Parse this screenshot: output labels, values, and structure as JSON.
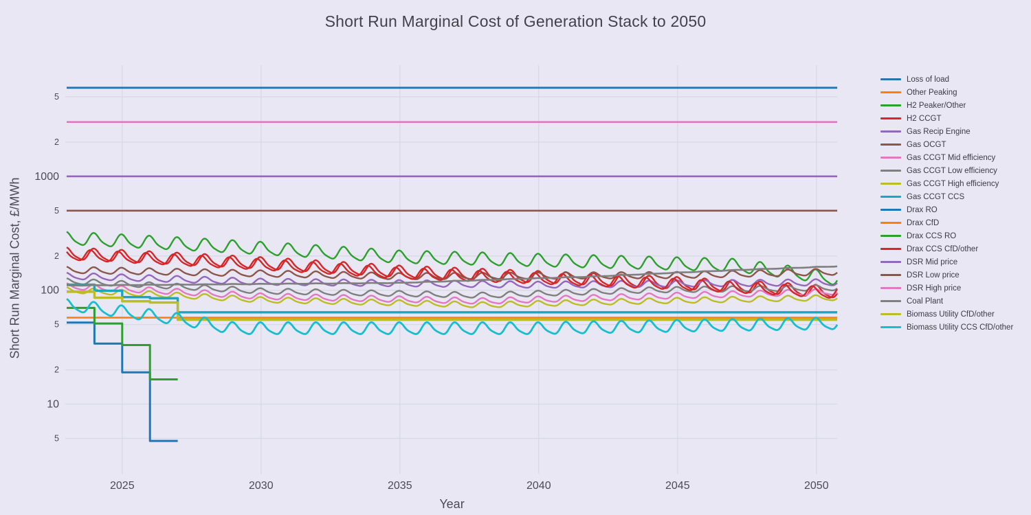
{
  "chart_data": {
    "type": "line",
    "title": "Short Run Marginal Cost of Generation Stack to 2050",
    "xlabel": "Year",
    "ylabel": "Short Run Marginal Cost, £/MWh",
    "x_range": [
      2023,
      2050.75
    ],
    "y_log_range": [
      0.388,
      3.976
    ],
    "x_ticks": [
      2025,
      2030,
      2035,
      2040,
      2045,
      2050
    ],
    "y_ticks": [
      {
        "value": 5000,
        "label": "5",
        "minor": true
      },
      {
        "value": 2000,
        "label": "2",
        "minor": true
      },
      {
        "value": 1000,
        "label": "1000",
        "minor": false
      },
      {
        "value": 500,
        "label": "5",
        "minor": true
      },
      {
        "value": 200,
        "label": "2",
        "minor": true
      },
      {
        "value": 100,
        "label": "100",
        "minor": false
      },
      {
        "value": 50,
        "label": "5",
        "minor": true
      },
      {
        "value": 20,
        "label": "2",
        "minor": true
      },
      {
        "value": 10,
        "label": "10",
        "minor": false
      },
      {
        "value": 5,
        "label": "5",
        "minor": true
      }
    ],
    "grid": true,
    "legend_position": "right",
    "series": [
      {
        "name": "Loss of load",
        "color": "#1f77b4",
        "kind": "flat",
        "value": 6000,
        "width": 2.8
      },
      {
        "name": "Other Peaking",
        "color": "#ff7f0e",
        "kind": "flat",
        "value": 57.5,
        "width": 2.4
      },
      {
        "name": "H2 Peaker/Other",
        "color": "#2ca02c",
        "kind": "osc",
        "trend": [
          [
            2023,
            285
          ],
          [
            2035,
            195
          ],
          [
            2043,
            175
          ],
          [
            2047,
            165
          ],
          [
            2051,
            122
          ]
        ],
        "amp": 0.14,
        "phase": 0,
        "width": 2.4
      },
      {
        "name": "H2 CCGT",
        "color": "#d62728",
        "kind": "osc",
        "trend": [
          [
            2023,
            210
          ],
          [
            2035,
            145
          ],
          [
            2045,
            115
          ],
          [
            2051,
            95
          ]
        ],
        "amp": 0.13,
        "phase": 0,
        "width": 2.4
      },
      {
        "name": "Gas Recip Engine",
        "color": "#9467bd",
        "kind": "osc",
        "trend": [
          [
            2023,
            133
          ],
          [
            2030,
            118
          ],
          [
            2040,
            111
          ],
          [
            2051,
            117
          ]
        ],
        "amp": 0.07,
        "phase": 0,
        "width": 2.4
      },
      {
        "name": "Gas OCGT",
        "color": "#8c564b",
        "kind": "osc",
        "trend": [
          [
            2023,
            150
          ],
          [
            2035,
            132
          ],
          [
            2045,
            135
          ],
          [
            2051,
            145
          ]
        ],
        "amp": 0.07,
        "phase": 0,
        "width": 2.4
      },
      {
        "name": "Gas CCGT Mid efficiency",
        "color": "#e377c2",
        "kind": "osc",
        "trend": [
          [
            2023,
            108
          ],
          [
            2030,
            88
          ],
          [
            2038,
            80
          ],
          [
            2044,
            88
          ],
          [
            2051,
            97
          ]
        ],
        "amp": 0.065,
        "phase": 0,
        "width": 2.4
      },
      {
        "name": "Gas CCGT Low efficiency",
        "color": "#7f7f7f",
        "kind": "osc",
        "trend": [
          [
            2023,
            120
          ],
          [
            2030,
            98
          ],
          [
            2038,
            90
          ],
          [
            2044,
            100
          ],
          [
            2051,
            105
          ]
        ],
        "amp": 0.06,
        "phase": 0,
        "width": 2.4
      },
      {
        "name": "Gas CCGT High efficiency",
        "color": "#bcbd22",
        "kind": "osc",
        "trend": [
          [
            2023,
            100
          ],
          [
            2030,
            82
          ],
          [
            2038,
            74
          ],
          [
            2044,
            80
          ],
          [
            2051,
            86
          ]
        ],
        "amp": 0.06,
        "phase": 0,
        "width": 2.4
      },
      {
        "name": "Gas CCGT CCS",
        "color": "#1aa6bf",
        "kind": "step",
        "steps": [
          [
            2023,
            112
          ],
          [
            2024,
            99
          ],
          [
            2025,
            87
          ],
          [
            2026,
            85
          ],
          [
            2027,
            64
          ]
        ],
        "end": 2050.75,
        "width": 3.4
      },
      {
        "name": "Drax RO",
        "color": "#1f77b4",
        "kind": "step",
        "steps": [
          [
            2023,
            52
          ],
          [
            2024,
            34
          ],
          [
            2025,
            19
          ],
          [
            2026,
            4.75
          ]
        ],
        "end": 2027,
        "width": 3.0
      },
      {
        "name": "Drax CfD",
        "color": "#ff7f0e",
        "kind": "flat",
        "value": 57.5,
        "width": 2.4
      },
      {
        "name": "Drax CCS RO",
        "color": "#2ca02c",
        "kind": "step",
        "steps": [
          [
            2023,
            70
          ],
          [
            2024,
            51
          ],
          [
            2025,
            33
          ],
          [
            2026,
            16.5
          ]
        ],
        "end": 2027,
        "width": 3.0
      },
      {
        "name": "Drax CCS CfD/other",
        "color": "#d62728",
        "kind": "osc",
        "trend": [
          [
            2023,
            205
          ],
          [
            2035,
            140
          ],
          [
            2045,
            112
          ],
          [
            2051,
            93
          ]
        ],
        "amp": 0.12,
        "phase": 0.12,
        "width": 2.4
      },
      {
        "name": "DSR Mid price",
        "color": "#9467bd",
        "kind": "flat",
        "value": 1000,
        "width": 2.6
      },
      {
        "name": "DSR Low price",
        "color": "#8c564b",
        "kind": "flat",
        "value": 500,
        "width": 2.6
      },
      {
        "name": "DSR High price",
        "color": "#e377c2",
        "kind": "flat",
        "value": 3000,
        "width": 2.6
      },
      {
        "name": "Coal Plant",
        "color": "#7f7f7f",
        "kind": "osc",
        "trend": [
          [
            2023,
            110
          ],
          [
            2035,
            116
          ],
          [
            2042,
            132
          ],
          [
            2047,
            150
          ],
          [
            2051,
            163
          ]
        ],
        "amp": 0.004,
        "phase": 0,
        "width": 2.6
      },
      {
        "name": "Biomass Utility CfD/other",
        "color": "#bcbd22",
        "kind": "step",
        "steps": [
          [
            2023,
            97
          ],
          [
            2024,
            86
          ],
          [
            2025,
            80
          ],
          [
            2026,
            78
          ],
          [
            2027,
            55
          ]
        ],
        "end": 2050.75,
        "width": 3.4
      },
      {
        "name": "Biomass Utility CCS CfD/other",
        "color": "#17becf",
        "kind": "osc",
        "trend": [
          [
            2023,
            74
          ],
          [
            2026,
            60
          ],
          [
            2029,
            46
          ],
          [
            2040,
            46
          ],
          [
            2051,
            51
          ]
        ],
        "amp": 0.13,
        "phase": 0,
        "width": 2.8
      }
    ]
  },
  "layout_colors": {
    "background": "#e8e7f3",
    "gridline": "#d9d8e7",
    "tick_text": "#4c4a55",
    "title_text": "#43414c",
    "legend_text": "#3c3a45"
  }
}
